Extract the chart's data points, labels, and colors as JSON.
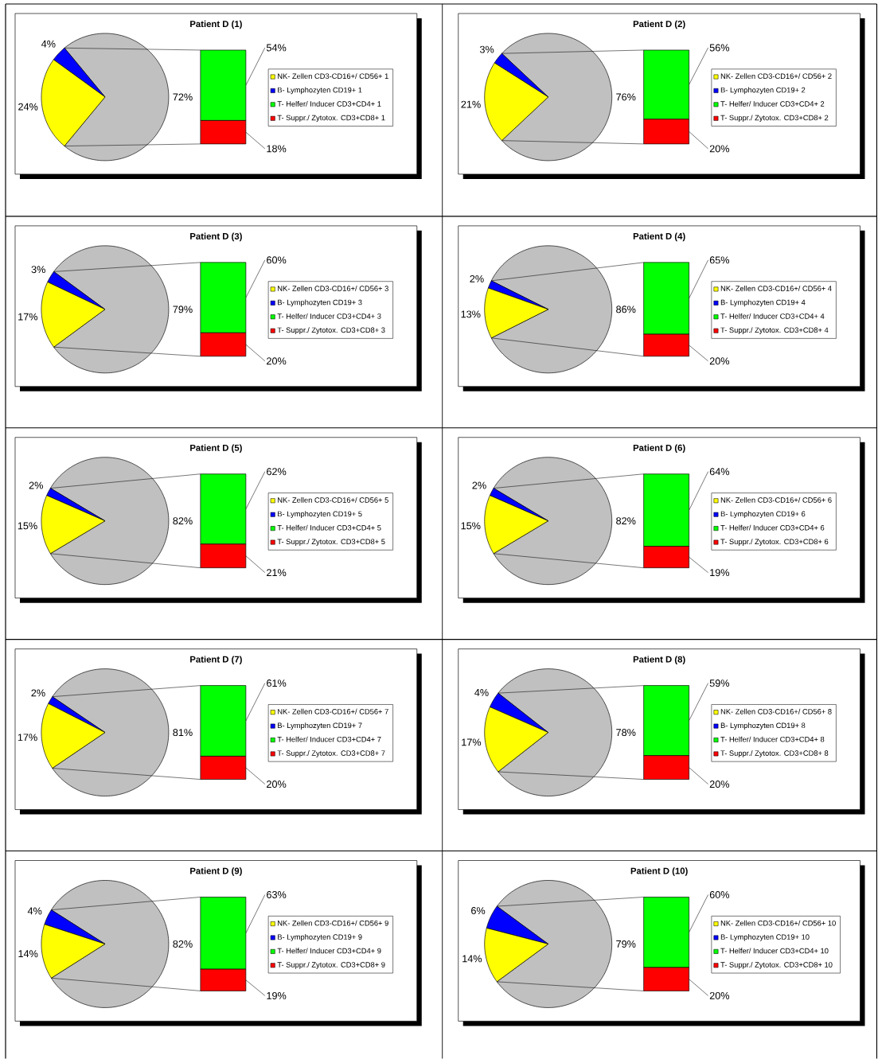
{
  "chart_data": [
    {
      "type": "pie",
      "title": "Patient D (1)",
      "categories": [
        "NK- Zellen CD3-CD16+/ CD56+ 1",
        "B- Lymphozyten CD19+ 1",
        null
      ],
      "values": [
        24,
        4,
        72
      ],
      "value_labels": [
        "24%",
        "4%",
        "72%"
      ],
      "colors": [
        "#ffff00",
        "#0000ff",
        "#c0c0c0"
      ]
    },
    {
      "type": "bar",
      "stacked": true,
      "legend": "right",
      "categories": [
        null
      ],
      "series": [
        {
          "name": "T- Suppr./ Zytotox. CD3+CD8+ 1",
          "color": "#ff0000",
          "values": [
            18
          ],
          "value_labels": [
            "18%"
          ]
        },
        {
          "name": "T- Helfer/ Inducer CD3+CD4+ 1",
          "color": "#00ff00",
          "values": [
            54
          ],
          "value_labels": [
            "54%"
          ]
        }
      ]
    },
    {
      "type": "pie",
      "title": "Patient D (2)",
      "categories": [
        "NK- Zellen CD3-CD16+/ CD56+ 2",
        "B- Lymphozyten CD19+ 2",
        null
      ],
      "values": [
        21,
        3,
        76
      ],
      "value_labels": [
        "21%",
        "3%",
        "76%"
      ],
      "colors": [
        "#ffff00",
        "#0000ff",
        "#c0c0c0"
      ]
    },
    {
      "type": "bar",
      "stacked": true,
      "legend": "right",
      "categories": [
        null
      ],
      "series": [
        {
          "name": "T- Suppr./ Zytotox. CD3+CD8+ 2",
          "color": "#ff0000",
          "values": [
            20
          ],
          "value_labels": [
            "20%"
          ]
        },
        {
          "name": "T- Helfer/ Inducer CD3+CD4+ 2",
          "color": "#00ff00",
          "values": [
            56
          ],
          "value_labels": [
            "56%"
          ]
        }
      ]
    },
    {
      "type": "pie",
      "title": "Patient D (3)",
      "categories": [
        "NK- Zellen CD3-CD16+/ CD56+ 3",
        "B- Lymphozyten CD19+ 3",
        null
      ],
      "values": [
        17,
        3,
        79
      ],
      "value_labels": [
        "17%",
        "3%",
        "79%"
      ],
      "colors": [
        "#ffff00",
        "#0000ff",
        "#c0c0c0"
      ]
    },
    {
      "type": "bar",
      "stacked": true,
      "legend": "right",
      "categories": [
        null
      ],
      "series": [
        {
          "name": "T- Suppr./ Zytotox. CD3+CD8+ 3",
          "color": "#ff0000",
          "values": [
            20
          ],
          "value_labels": [
            "20%"
          ]
        },
        {
          "name": "T- Helfer/ Inducer CD3+CD4+ 3",
          "color": "#00ff00",
          "values": [
            60
          ],
          "value_labels": [
            "60%"
          ]
        }
      ]
    },
    {
      "type": "pie",
      "title": "Patient D (4)",
      "categories": [
        "NK- Zellen CD3-CD16+/ CD56+ 4",
        "B- Lymphozyten CD19+ 4",
        null
      ],
      "values": [
        13,
        2,
        86
      ],
      "value_labels": [
        "13%",
        "2%",
        "86%"
      ],
      "colors": [
        "#ffff00",
        "#0000ff",
        "#c0c0c0"
      ]
    },
    {
      "type": "bar",
      "stacked": true,
      "legend": "right",
      "categories": [
        null
      ],
      "series": [
        {
          "name": "T- Suppr./ Zytotox. CD3+CD8+ 4",
          "color": "#ff0000",
          "values": [
            20
          ],
          "value_labels": [
            "20%"
          ]
        },
        {
          "name": "T- Helfer/ Inducer CD3+CD4+ 4",
          "color": "#00ff00",
          "values": [
            65
          ],
          "value_labels": [
            "65%"
          ]
        }
      ]
    },
    {
      "type": "pie",
      "title": "Patient D (5)",
      "categories": [
        "NK- Zellen CD3-CD16+/ CD56+ 5",
        "B- Lymphozyten CD19+ 5",
        null
      ],
      "values": [
        15,
        2,
        82
      ],
      "value_labels": [
        "15%",
        "2%",
        "82%"
      ],
      "colors": [
        "#ffff00",
        "#0000ff",
        "#c0c0c0"
      ]
    },
    {
      "type": "bar",
      "stacked": true,
      "legend": "right",
      "categories": [
        null
      ],
      "series": [
        {
          "name": "T- Suppr./ Zytotox. CD3+CD8+ 5",
          "color": "#ff0000",
          "values": [
            21
          ],
          "value_labels": [
            "21%"
          ]
        },
        {
          "name": "T- Helfer/ Inducer CD3+CD4+ 5",
          "color": "#00ff00",
          "values": [
            62
          ],
          "value_labels": [
            "62%"
          ]
        }
      ]
    },
    {
      "type": "pie",
      "title": "Patient D (6)",
      "categories": [
        "NK- Zellen CD3-CD16+/ CD56+ 6",
        "B- Lymphozyten CD19+ 6",
        null
      ],
      "values": [
        15,
        2,
        82
      ],
      "value_labels": [
        "15%",
        "2%",
        "82%"
      ],
      "colors": [
        "#ffff00",
        "#0000ff",
        "#c0c0c0"
      ]
    },
    {
      "type": "bar",
      "stacked": true,
      "legend": "right",
      "categories": [
        null
      ],
      "series": [
        {
          "name": "T- Suppr./ Zytotox. CD3+CD8+ 6",
          "color": "#ff0000",
          "values": [
            19
          ],
          "value_labels": [
            "19%"
          ]
        },
        {
          "name": "T- Helfer/ Inducer CD3+CD4+ 6",
          "color": "#00ff00",
          "values": [
            64
          ],
          "value_labels": [
            "64%"
          ]
        }
      ]
    },
    {
      "type": "pie",
      "title": "Patient D (7)",
      "categories": [
        "NK- Zellen CD3-CD16+/ CD56+ 7",
        "B- Lymphozyten CD19+ 7",
        null
      ],
      "values": [
        17,
        2,
        81
      ],
      "value_labels": [
        "17%",
        "2%",
        "81%"
      ],
      "colors": [
        "#ffff00",
        "#0000ff",
        "#c0c0c0"
      ]
    },
    {
      "type": "bar",
      "stacked": true,
      "legend": "right",
      "categories": [
        null
      ],
      "series": [
        {
          "name": "T- Suppr./ Zytotox. CD3+CD8+ 7",
          "color": "#ff0000",
          "values": [
            20
          ],
          "value_labels": [
            "20%"
          ]
        },
        {
          "name": "T- Helfer/ Inducer CD3+CD4+ 7",
          "color": "#00ff00",
          "values": [
            61
          ],
          "value_labels": [
            "61%"
          ]
        }
      ]
    },
    {
      "type": "pie",
      "title": "Patient D (8)",
      "categories": [
        "NK- Zellen CD3-CD16+/ CD56+ 8",
        "B- Lymphozyten CD19+ 8",
        null
      ],
      "values": [
        17,
        4,
        78
      ],
      "value_labels": [
        "17%",
        "4%",
        "78%"
      ],
      "colors": [
        "#ffff00",
        "#0000ff",
        "#c0c0c0"
      ]
    },
    {
      "type": "bar",
      "stacked": true,
      "legend": "right",
      "categories": [
        null
      ],
      "series": [
        {
          "name": "T- Suppr./ Zytotox. CD3+CD8+ 8",
          "color": "#ff0000",
          "values": [
            20
          ],
          "value_labels": [
            "20%"
          ]
        },
        {
          "name": "T- Helfer/ Inducer CD3+CD4+ 8",
          "color": "#00ff00",
          "values": [
            59
          ],
          "value_labels": [
            "59%"
          ]
        }
      ]
    },
    {
      "type": "pie",
      "title": "Patient D (9)",
      "categories": [
        "NK- Zellen CD3-CD16+/ CD56+ 9",
        "B- Lymphozyten CD19+ 9",
        null
      ],
      "values": [
        14,
        4,
        82
      ],
      "value_labels": [
        "14%",
        "4%",
        "82%"
      ],
      "colors": [
        "#ffff00",
        "#0000ff",
        "#c0c0c0"
      ]
    },
    {
      "type": "bar",
      "stacked": true,
      "legend": "right",
      "categories": [
        null
      ],
      "series": [
        {
          "name": "T- Suppr./ Zytotox. CD3+CD8+ 9",
          "color": "#ff0000",
          "values": [
            19
          ],
          "value_labels": [
            "19%"
          ]
        },
        {
          "name": "T- Helfer/ Inducer CD3+CD4+ 9",
          "color": "#00ff00",
          "values": [
            63
          ],
          "value_labels": [
            "63%"
          ]
        }
      ]
    },
    {
      "type": "pie",
      "title": "Patient D (10)",
      "categories": [
        "NK- Zellen CD3-CD16+/ CD56+ 10",
        "B- Lymphozyten CD19+ 10",
        null
      ],
      "values": [
        14,
        6,
        79
      ],
      "value_labels": [
        "14%",
        "6%",
        "79%"
      ],
      "colors": [
        "#ffff00",
        "#0000ff",
        "#c0c0c0"
      ]
    },
    {
      "type": "bar",
      "stacked": true,
      "legend": "right",
      "categories": [
        null
      ],
      "series": [
        {
          "name": "T- Suppr./ Zytotox. CD3+CD8+ 10",
          "color": "#ff0000",
          "values": [
            20
          ],
          "value_labels": [
            "20%"
          ]
        },
        {
          "name": "T- Helfer/ Inducer CD3+CD4+ 10",
          "color": "#00ff00",
          "values": [
            60
          ],
          "value_labels": [
            "60%"
          ]
        }
      ]
    }
  ]
}
